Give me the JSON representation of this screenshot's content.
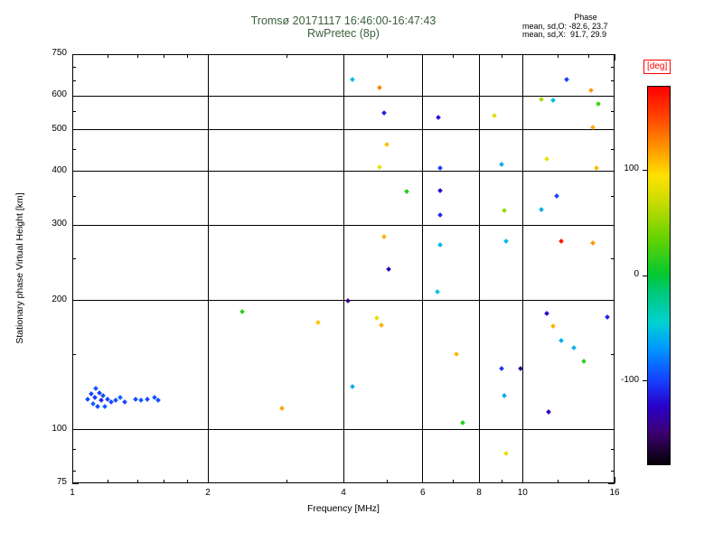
{
  "stats": {
    "heading": "Phase",
    "line_o": "mean, sd,O: -82.6, 23.7",
    "line_x": "mean, sd,X:  91.7, 29.9"
  },
  "colorbar": {
    "label": "[deg]",
    "label_color": "#ff0000",
    "ticks": [
      100,
      0,
      -100
    ],
    "range": [
      -180,
      180
    ]
  },
  "chart_data": {
    "type": "scatter",
    "title": "Tromsø 20171117 16:46:00-16:47:43",
    "subtitle": "RwPretec (8p)",
    "xlabel": "Frequency [MHz]",
    "ylabel": "Stationary phase Virtual Height [km]",
    "x_scale": "log",
    "y_scale": "log",
    "xlim": [
      1,
      16
    ],
    "ylim": [
      75,
      750
    ],
    "x_ticks": [
      1,
      2,
      4,
      6,
      8,
      10,
      16
    ],
    "y_ticks": [
      750,
      600,
      500,
      400,
      300,
      200,
      100,
      75
    ],
    "x_grid": [
      2,
      4,
      6,
      8,
      10
    ],
    "y_grid": [
      100,
      200,
      300,
      400,
      500,
      600
    ],
    "x_minor": [
      1.2,
      1.4,
      1.6,
      1.8,
      3,
      5,
      7,
      9,
      12,
      14
    ],
    "y_minor": [
      80,
      90,
      150,
      250,
      350,
      450,
      550,
      650,
      700
    ],
    "grid": true,
    "legend_position": "right-colorbar",
    "colormap": [
      [
        -180,
        "#050005"
      ],
      [
        -150,
        "#3c0070"
      ],
      [
        -125,
        "#2a00c8"
      ],
      [
        -100,
        "#1540ff"
      ],
      [
        -70,
        "#0096ff"
      ],
      [
        -45,
        "#00d2d2"
      ],
      [
        -15,
        "#00c878"
      ],
      [
        0,
        "#00c832"
      ],
      [
        35,
        "#64d200"
      ],
      [
        70,
        "#c8dc00"
      ],
      [
        95,
        "#ffe100"
      ],
      [
        120,
        "#ff9b00"
      ],
      [
        150,
        "#ff4600"
      ],
      [
        180,
        "#ff0000"
      ]
    ],
    "points_format": [
      "frequency_MHz",
      "virtual_height_km",
      "phase_deg"
    ],
    "points": [
      [
        1.08,
        118,
        -95
      ],
      [
        1.1,
        121,
        -100
      ],
      [
        1.11,
        115,
        -88
      ],
      [
        1.12,
        119,
        -104
      ],
      [
        1.13,
        125,
        -92
      ],
      [
        1.14,
        113,
        -96
      ],
      [
        1.15,
        122,
        -100
      ],
      [
        1.16,
        117,
        -108
      ],
      [
        1.17,
        120,
        -95
      ],
      [
        1.18,
        113,
        -90
      ],
      [
        1.2,
        118,
        -100
      ],
      [
        1.22,
        116,
        -96
      ],
      [
        1.25,
        117,
        -94
      ],
      [
        1.28,
        119,
        -90
      ],
      [
        1.31,
        116,
        -99
      ],
      [
        1.38,
        118,
        -94
      ],
      [
        1.42,
        117,
        -91
      ],
      [
        1.47,
        118,
        -96
      ],
      [
        1.52,
        119,
        -92
      ],
      [
        1.55,
        117,
        -95
      ],
      [
        2.38,
        188,
        15
      ],
      [
        2.92,
        112,
        118
      ],
      [
        3.52,
        178,
        105
      ],
      [
        4.1,
        200,
        -145
      ],
      [
        4.19,
        655,
        -55
      ],
      [
        4.19,
        126,
        -60
      ],
      [
        4.74,
        182,
        82
      ],
      [
        4.81,
        627,
        128
      ],
      [
        4.81,
        409,
        85
      ],
      [
        4.86,
        175,
        112
      ],
      [
        4.92,
        546,
        -112
      ],
      [
        4.92,
        282,
        112
      ],
      [
        5.0,
        461,
        108
      ],
      [
        5.03,
        237,
        -132
      ],
      [
        5.53,
        359,
        12
      ],
      [
        6.47,
        210,
        -52
      ],
      [
        6.5,
        534,
        -120
      ],
      [
        6.56,
        408,
        -100
      ],
      [
        6.56,
        361,
        -122
      ],
      [
        6.56,
        316,
        -108
      ],
      [
        6.56,
        270,
        -58
      ],
      [
        7.12,
        150,
        110
      ],
      [
        7.35,
        104,
        12
      ],
      [
        8.66,
        540,
        78
      ],
      [
        8.96,
        415,
        -60
      ],
      [
        8.96,
        139,
        -104
      ],
      [
        9.1,
        324,
        52
      ],
      [
        9.1,
        120,
        -62
      ],
      [
        9.2,
        275,
        -55
      ],
      [
        9.2,
        88,
        86
      ],
      [
        9.9,
        139,
        -140
      ],
      [
        11.0,
        589,
        58
      ],
      [
        11.0,
        326,
        -60
      ],
      [
        11.3,
        427,
        86
      ],
      [
        11.3,
        187,
        -122
      ],
      [
        11.4,
        110,
        -132
      ],
      [
        11.7,
        585,
        -55
      ],
      [
        11.7,
        174,
        112
      ],
      [
        11.9,
        350,
        -100
      ],
      [
        12.2,
        275,
        170
      ],
      [
        12.2,
        161,
        -60
      ],
      [
        12.5,
        655,
        -100
      ],
      [
        13.0,
        155,
        -58
      ],
      [
        13.7,
        144,
        16
      ],
      [
        14.2,
        618,
        120
      ],
      [
        14.3,
        506,
        115
      ],
      [
        14.3,
        272,
        122
      ],
      [
        14.6,
        408,
        110
      ],
      [
        14.7,
        574,
        20
      ],
      [
        15.4,
        183,
        -110
      ]
    ]
  }
}
